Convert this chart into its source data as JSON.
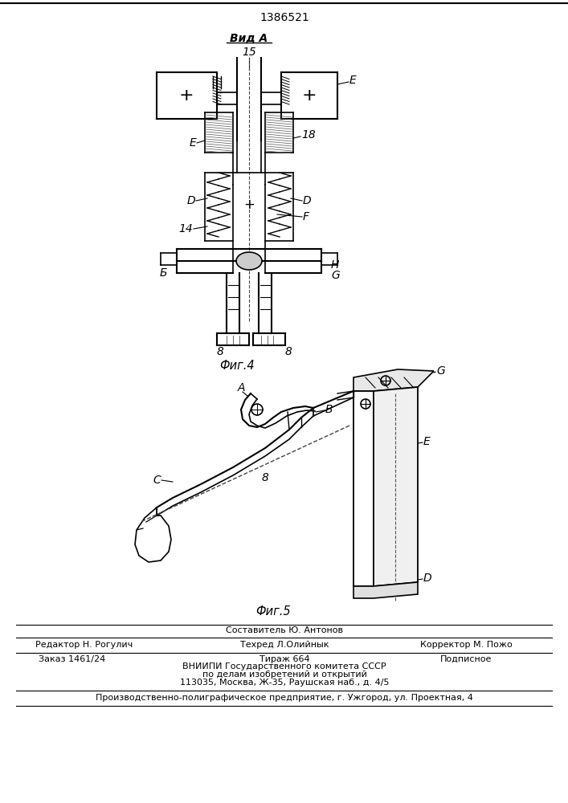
{
  "patent_number": "1386521",
  "vid_a_label": "Вид А",
  "fig4_number": "15",
  "fig4_caption": "Фиг.4",
  "fig5_caption": "Фиг.5",
  "sestavitel": "Составитель Ю. Антонов",
  "redaktor": "Редактор Н. Рогулич",
  "tehred": "Техред Л.Олийнык",
  "korrektor": "Корректор М. Пожо",
  "zakaz": "Заказ 1461/24",
  "tirazh": "Тираж 664",
  "podpisnoe": "Подписное",
  "vniip1": "ВНИИПИ Государственного комитета СССР",
  "vniip2": "по делам изобретений и открытий",
  "vniip3": "113035, Москва, Ж-35, Раушская наб., д. 4/5",
  "predpriyatie": "Производственно-полиграфическое предприятие, г. Ужгород, ул. Проектная, 4",
  "bg_color": "#ffffff",
  "line_color": "#000000",
  "text_color": "#000000"
}
